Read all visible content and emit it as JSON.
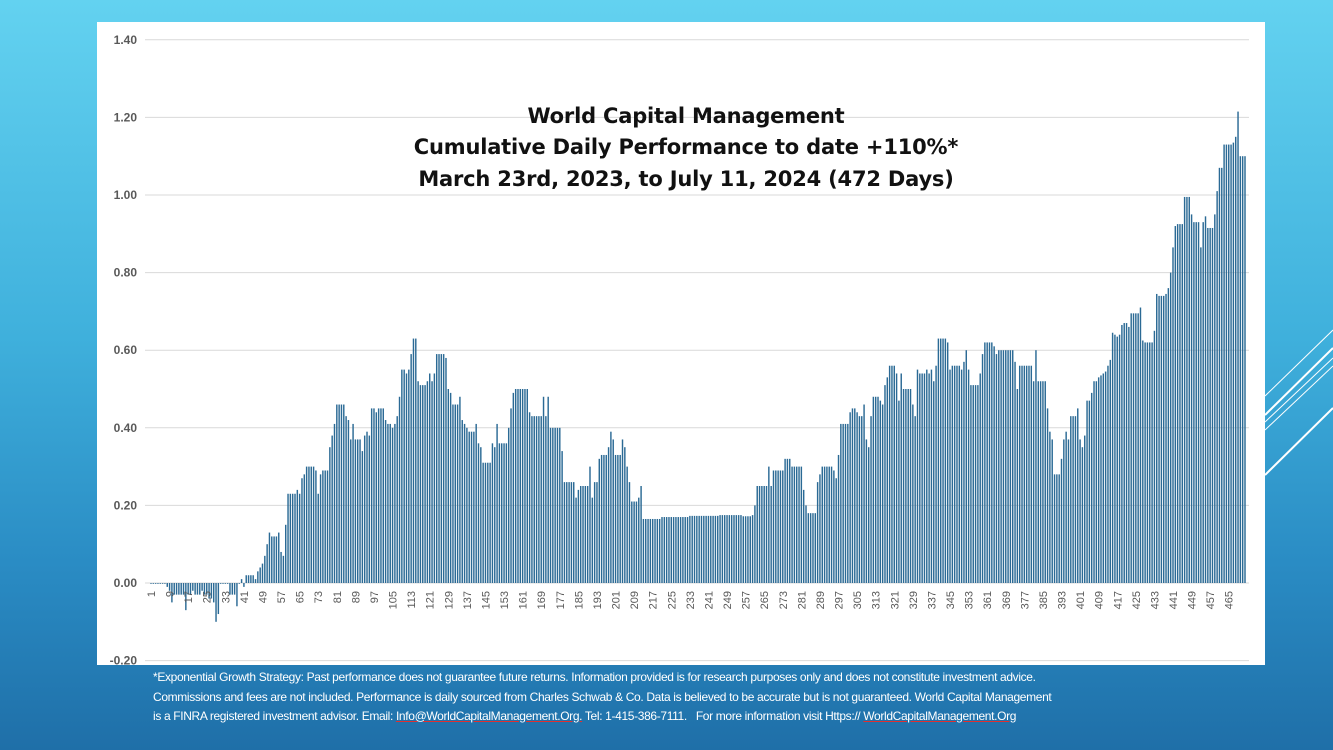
{
  "colors": {
    "bar": "#2b6a95",
    "grid": "#d9d9d9",
    "axis_text": "#595959",
    "background_top": "#63d2f0",
    "background_bottom": "#1f6fa8"
  },
  "chart_data": {
    "type": "bar",
    "title": [
      "World Capital Management",
      "Cumulative Daily Performance to date +110%*",
      "March 23rd, 2023, to July 11, 2024 (472 Days)"
    ],
    "xlabel": "",
    "ylabel": "",
    "ylim": [
      -0.2,
      1.4
    ],
    "y_ticks": [
      "-0.20",
      "0.00",
      "0.20",
      "0.40",
      "0.60",
      "0.80",
      "1.00",
      "1.20",
      "1.40"
    ],
    "x_first": 1,
    "x_tick_step": 8,
    "grid": true,
    "legend": "none",
    "values": [
      0.0,
      0.0,
      0.0,
      0.0,
      0.0,
      0.0,
      0.0,
      -0.01,
      -0.02,
      -0.05,
      -0.03,
      -0.03,
      -0.03,
      -0.03,
      -0.03,
      -0.07,
      -0.03,
      -0.03,
      -0.02,
      -0.03,
      -0.03,
      -0.03,
      -0.02,
      -0.03,
      -0.03,
      -0.04,
      -0.04,
      -0.05,
      -0.1,
      -0.08,
      0.0,
      0.0,
      0.0,
      0.0,
      -0.03,
      -0.03,
      -0.03,
      -0.06,
      0.0,
      0.01,
      -0.01,
      0.02,
      0.02,
      0.02,
      0.02,
      0.01,
      0.03,
      0.04,
      0.05,
      0.07,
      0.1,
      0.13,
      0.12,
      0.12,
      0.12,
      0.13,
      0.08,
      0.07,
      0.15,
      0.23,
      0.23,
      0.23,
      0.23,
      0.24,
      0.23,
      0.27,
      0.28,
      0.3,
      0.3,
      0.3,
      0.3,
      0.29,
      0.23,
      0.28,
      0.29,
      0.29,
      0.29,
      0.35,
      0.38,
      0.41,
      0.46,
      0.46,
      0.46,
      0.46,
      0.43,
      0.42,
      0.37,
      0.41,
      0.37,
      0.37,
      0.37,
      0.34,
      0.38,
      0.39,
      0.38,
      0.45,
      0.45,
      0.44,
      0.45,
      0.45,
      0.45,
      0.42,
      0.41,
      0.41,
      0.4,
      0.41,
      0.43,
      0.48,
      0.55,
      0.55,
      0.54,
      0.55,
      0.59,
      0.63,
      0.63,
      0.52,
      0.51,
      0.51,
      0.51,
      0.52,
      0.54,
      0.52,
      0.54,
      0.59,
      0.59,
      0.59,
      0.59,
      0.58,
      0.5,
      0.49,
      0.46,
      0.46,
      0.46,
      0.48,
      0.42,
      0.41,
      0.4,
      0.39,
      0.39,
      0.39,
      0.41,
      0.36,
      0.35,
      0.31,
      0.31,
      0.31,
      0.31,
      0.36,
      0.35,
      0.41,
      0.36,
      0.36,
      0.36,
      0.36,
      0.4,
      0.45,
      0.49,
      0.5,
      0.5,
      0.5,
      0.5,
      0.5,
      0.5,
      0.44,
      0.43,
      0.43,
      0.43,
      0.43,
      0.43,
      0.48,
      0.43,
      0.48,
      0.4,
      0.4,
      0.4,
      0.4,
      0.4,
      0.34,
      0.26,
      0.26,
      0.26,
      0.26,
      0.26,
      0.22,
      0.24,
      0.25,
      0.25,
      0.25,
      0.25,
      0.3,
      0.22,
      0.26,
      0.26,
      0.32,
      0.33,
      0.33,
      0.33,
      0.35,
      0.39,
      0.37,
      0.33,
      0.33,
      0.33,
      0.37,
      0.35,
      0.3,
      0.26,
      0.21,
      0.21,
      0.21,
      0.22,
      0.25,
      0.165,
      0.165,
      0.165,
      0.165,
      0.165,
      0.165,
      0.165,
      0.165,
      0.17,
      0.17,
      0.17,
      0.17,
      0.17,
      0.17,
      0.17,
      0.17,
      0.17,
      0.17,
      0.17,
      0.17,
      0.173,
      0.173,
      0.173,
      0.173,
      0.173,
      0.173,
      0.173,
      0.173,
      0.173,
      0.173,
      0.173,
      0.173,
      0.173,
      0.175,
      0.175,
      0.175,
      0.175,
      0.175,
      0.175,
      0.175,
      0.175,
      0.175,
      0.175,
      0.172,
      0.172,
      0.172,
      0.172,
      0.175,
      0.2,
      0.25,
      0.25,
      0.25,
      0.25,
      0.25,
      0.3,
      0.25,
      0.29,
      0.29,
      0.29,
      0.29,
      0.29,
      0.32,
      0.32,
      0.32,
      0.3,
      0.3,
      0.3,
      0.3,
      0.3,
      0.24,
      0.2,
      0.18,
      0.18,
      0.18,
      0.18,
      0.26,
      0.28,
      0.3,
      0.3,
      0.3,
      0.3,
      0.3,
      0.29,
      0.27,
      0.33,
      0.41,
      0.41,
      0.41,
      0.41,
      0.44,
      0.45,
      0.45,
      0.44,
      0.43,
      0.43,
      0.46,
      0.37,
      0.35,
      0.43,
      0.48,
      0.48,
      0.48,
      0.47,
      0.46,
      0.51,
      0.53,
      0.56,
      0.56,
      0.56,
      0.54,
      0.47,
      0.54,
      0.5,
      0.5,
      0.5,
      0.5,
      0.46,
      0.43,
      0.55,
      0.54,
      0.54,
      0.54,
      0.55,
      0.54,
      0.55,
      0.52,
      0.56,
      0.63,
      0.63,
      0.63,
      0.63,
      0.62,
      0.55,
      0.56,
      0.56,
      0.56,
      0.56,
      0.55,
      0.57,
      0.6,
      0.55,
      0.51,
      0.51,
      0.51,
      0.51,
      0.54,
      0.59,
      0.62,
      0.62,
      0.62,
      0.62,
      0.61,
      0.59,
      0.6,
      0.6,
      0.6,
      0.6,
      0.6,
      0.6,
      0.6,
      0.57,
      0.5,
      0.56,
      0.56,
      0.56,
      0.56,
      0.56,
      0.56,
      0.52,
      0.6,
      0.52,
      0.52,
      0.52,
      0.52,
      0.45,
      0.39,
      0.37,
      0.28,
      0.28,
      0.28,
      0.32,
      0.37,
      0.39,
      0.37,
      0.43,
      0.43,
      0.43,
      0.45,
      0.37,
      0.35,
      0.38,
      0.47,
      0.47,
      0.49,
      0.52,
      0.52,
      0.53,
      0.535,
      0.54,
      0.545,
      0.56,
      0.575,
      0.645,
      0.64,
      0.635,
      0.64,
      0.665,
      0.67,
      0.67,
      0.66,
      0.695,
      0.695,
      0.695,
      0.695,
      0.71,
      0.625,
      0.62,
      0.62,
      0.62,
      0.62,
      0.65,
      0.745,
      0.74,
      0.74,
      0.74,
      0.745,
      0.76,
      0.8,
      0.865,
      0.92,
      0.925,
      0.925,
      0.925,
      0.995,
      0.995,
      0.995,
      0.95,
      0.93,
      0.93,
      0.93,
      0.865,
      0.93,
      0.945,
      0.915,
      0.915,
      0.915,
      0.95,
      1.01,
      1.07,
      1.07,
      1.13,
      1.13,
      1.13,
      1.13,
      1.135,
      1.15,
      1.215,
      1.1,
      1.1,
      1.1
    ]
  },
  "footnote": {
    "line1": "*Exponential Growth Strategy: Past performance does not guarantee future returns. Information provided is for research purposes only and does not constitute investment advice.",
    "line2": "Commissions and fees are not included. Performance is daily sourced from Charles Schwab & Co. Data is believed to be accurate but is not guaranteed. World Capital Management",
    "line3_prefix": "is a FINRA registered investment advisor. Email: ",
    "email": "Info@WorldCapitalManagement.Org.",
    "line3_mid": " Tel: 1-415-386-7111.   For more information visit Https:// ",
    "website": "WorldCapitalManagement.Org"
  }
}
